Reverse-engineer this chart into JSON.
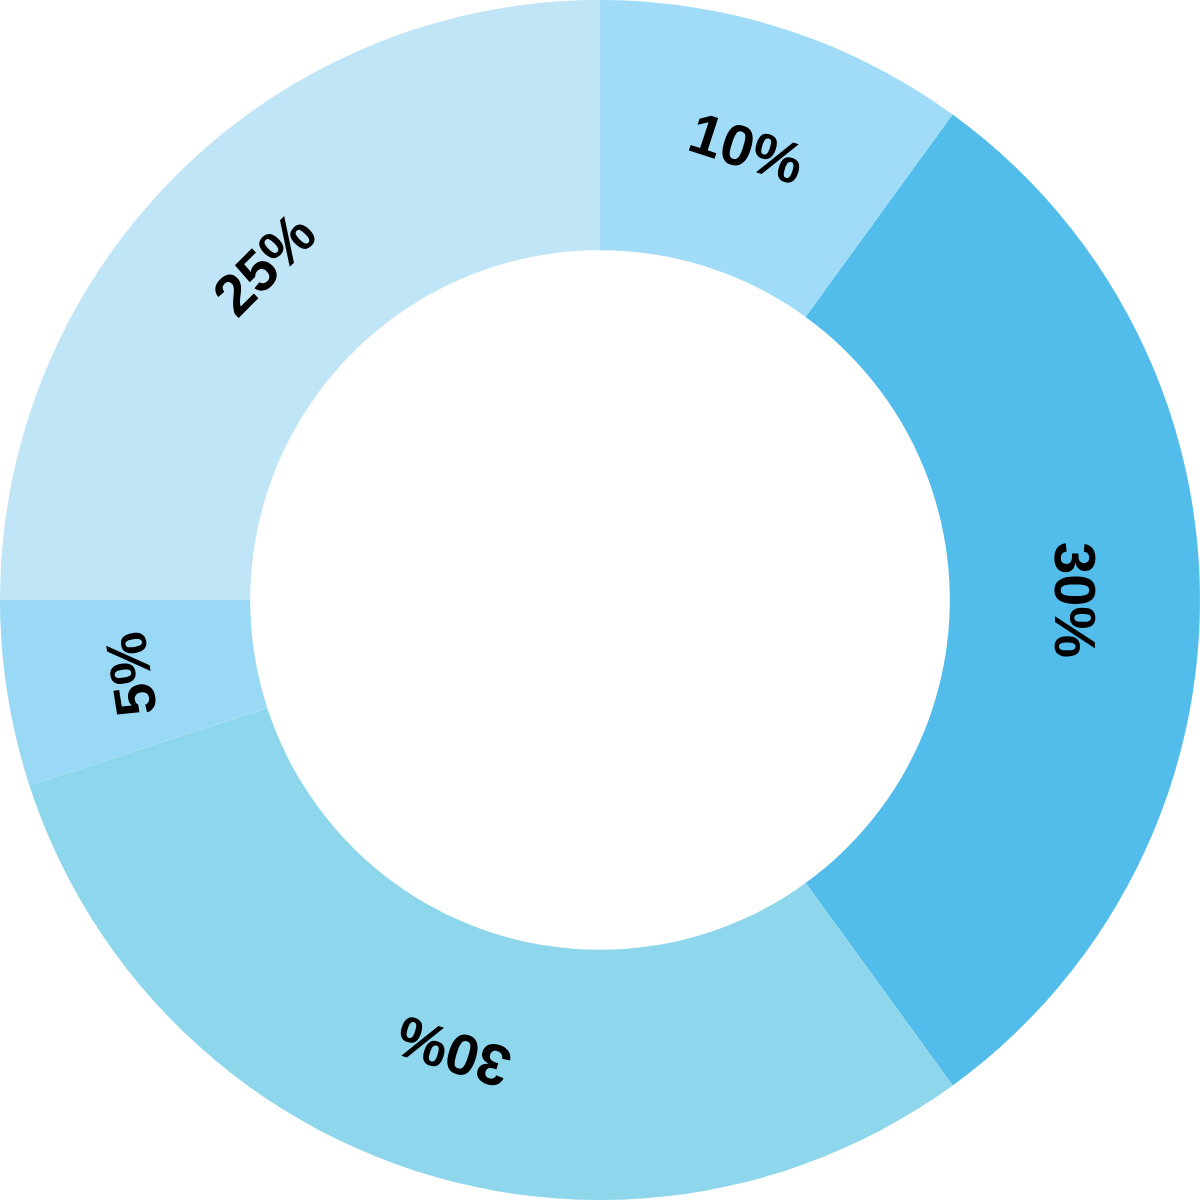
{
  "chart_data": {
    "type": "donut",
    "categories": [
      null,
      null,
      null,
      null,
      null
    ],
    "values": [
      10,
      30,
      30,
      5,
      25
    ],
    "value_labels": [
      "10%",
      "30%",
      "30%",
      "5%",
      "25%"
    ],
    "colors": [
      "#a0dcf8",
      "#52bceb",
      "#8ed6ec",
      "#99d9f5",
      "#c0e5f6"
    ],
    "legend": false
  }
}
